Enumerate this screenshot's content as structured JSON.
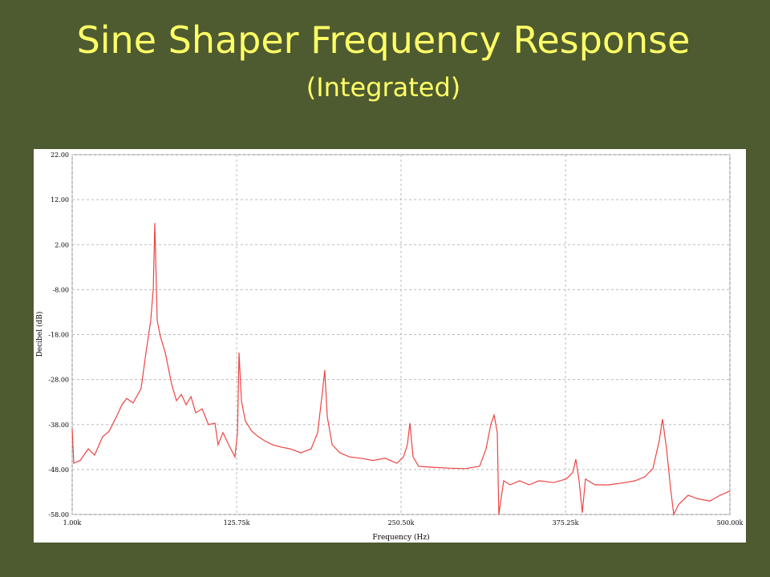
{
  "chart_data": {
    "type": "line",
    "title": "Sine Shaper Frequency Response",
    "subtitle": "(Integrated)",
    "x_label": "Frequency (Hz)",
    "y_label": "Decibel (dB)",
    "xlim": [
      1000,
      500000
    ],
    "ylim": [
      -58,
      22
    ],
    "xticks": [
      {
        "value": 1000,
        "label": "1.00k"
      },
      {
        "value": 125750,
        "label": "125.75k"
      },
      {
        "value": 250500,
        "label": "250.50k"
      },
      {
        "value": 375250,
        "label": "375.25k"
      },
      {
        "value": 500000,
        "label": "500.00k"
      }
    ],
    "yticks": [
      {
        "value": 22,
        "label": "22.00"
      },
      {
        "value": 12,
        "label": "12.00"
      },
      {
        "value": 2,
        "label": "2.00"
      },
      {
        "value": -8,
        "label": "-8.00"
      },
      {
        "value": -18,
        "label": "-18.00"
      },
      {
        "value": -28,
        "label": "-28.00"
      },
      {
        "value": -38,
        "label": "-38.00"
      },
      {
        "value": -48,
        "label": "-48.00"
      },
      {
        "value": -58,
        "label": "-58.00"
      }
    ],
    "grid": true,
    "series": [
      {
        "color": "#ee4444",
        "x": [
          1000,
          2200,
          7100,
          13200,
          18000,
          24100,
          29000,
          34500,
          38700,
          42400,
          47200,
          53300,
          57000,
          60600,
          62500,
          63700,
          65500,
          67900,
          71600,
          76500,
          80100,
          83800,
          87400,
          91100,
          94700,
          99600,
          104400,
          109300,
          111700,
          115400,
          119700,
          124500,
          126400,
          127600,
          129400,
          132400,
          137300,
          142200,
          147000,
          153100,
          159200,
          166500,
          174400,
          182300,
          187200,
          190800,
          192600,
          194500,
          198200,
          204200,
          211500,
          220000,
          229200,
          238300,
          247400,
          252300,
          255300,
          257200,
          259600,
          263900,
          274800,
          287000,
          299200,
          310100,
          315000,
          318600,
          321100,
          323500,
          324700,
          328400,
          333200,
          340500,
          347800,
          355100,
          366100,
          375800,
          380700,
          383100,
          385600,
          388000,
          390400,
          397700,
          407500,
          418400,
          428200,
          435500,
          441600,
          446400,
          448900,
          451900,
          455000,
          457400,
          461000,
          468300,
          475600,
          484800,
          492700,
          500000
        ],
        "values": [
          -38.9,
          -46.6,
          -46,
          -43.4,
          -44.8,
          -40.7,
          -39.5,
          -36.3,
          -33.6,
          -32.2,
          -33.2,
          -30,
          -22,
          -14.9,
          -7.8,
          6.8,
          -14.9,
          -18.4,
          -22,
          -29.1,
          -32.7,
          -31.3,
          -33.6,
          -31.8,
          -35.4,
          -34.5,
          -38,
          -37.7,
          -42.5,
          -39.8,
          -42.5,
          -45.2,
          -39.8,
          -22,
          -32.7,
          -37.2,
          -39.5,
          -40.7,
          -41.6,
          -42.5,
          -43,
          -43.4,
          -44.3,
          -43.4,
          -39.8,
          -30.9,
          -25.9,
          -36.2,
          -42.5,
          -44.3,
          -45.2,
          -45.5,
          -46,
          -45.5,
          -46.6,
          -45.2,
          -42.5,
          -37.7,
          -45.2,
          -47.3,
          -47.5,
          -47.7,
          -47.8,
          -47.3,
          -43.4,
          -38,
          -35.9,
          -39.8,
          -58,
          -50.5,
          -51.4,
          -50.5,
          -51.4,
          -50.5,
          -50.9,
          -50.1,
          -48.7,
          -45.7,
          -50.5,
          -57.6,
          -50.1,
          -51.4,
          -51.4,
          -51,
          -50.5,
          -49.6,
          -47.8,
          -41.6,
          -36.8,
          -43.4,
          -52.3,
          -58,
          -55.8,
          -53.7,
          -54.5,
          -55,
          -53.7,
          -52.8
        ]
      }
    ]
  }
}
